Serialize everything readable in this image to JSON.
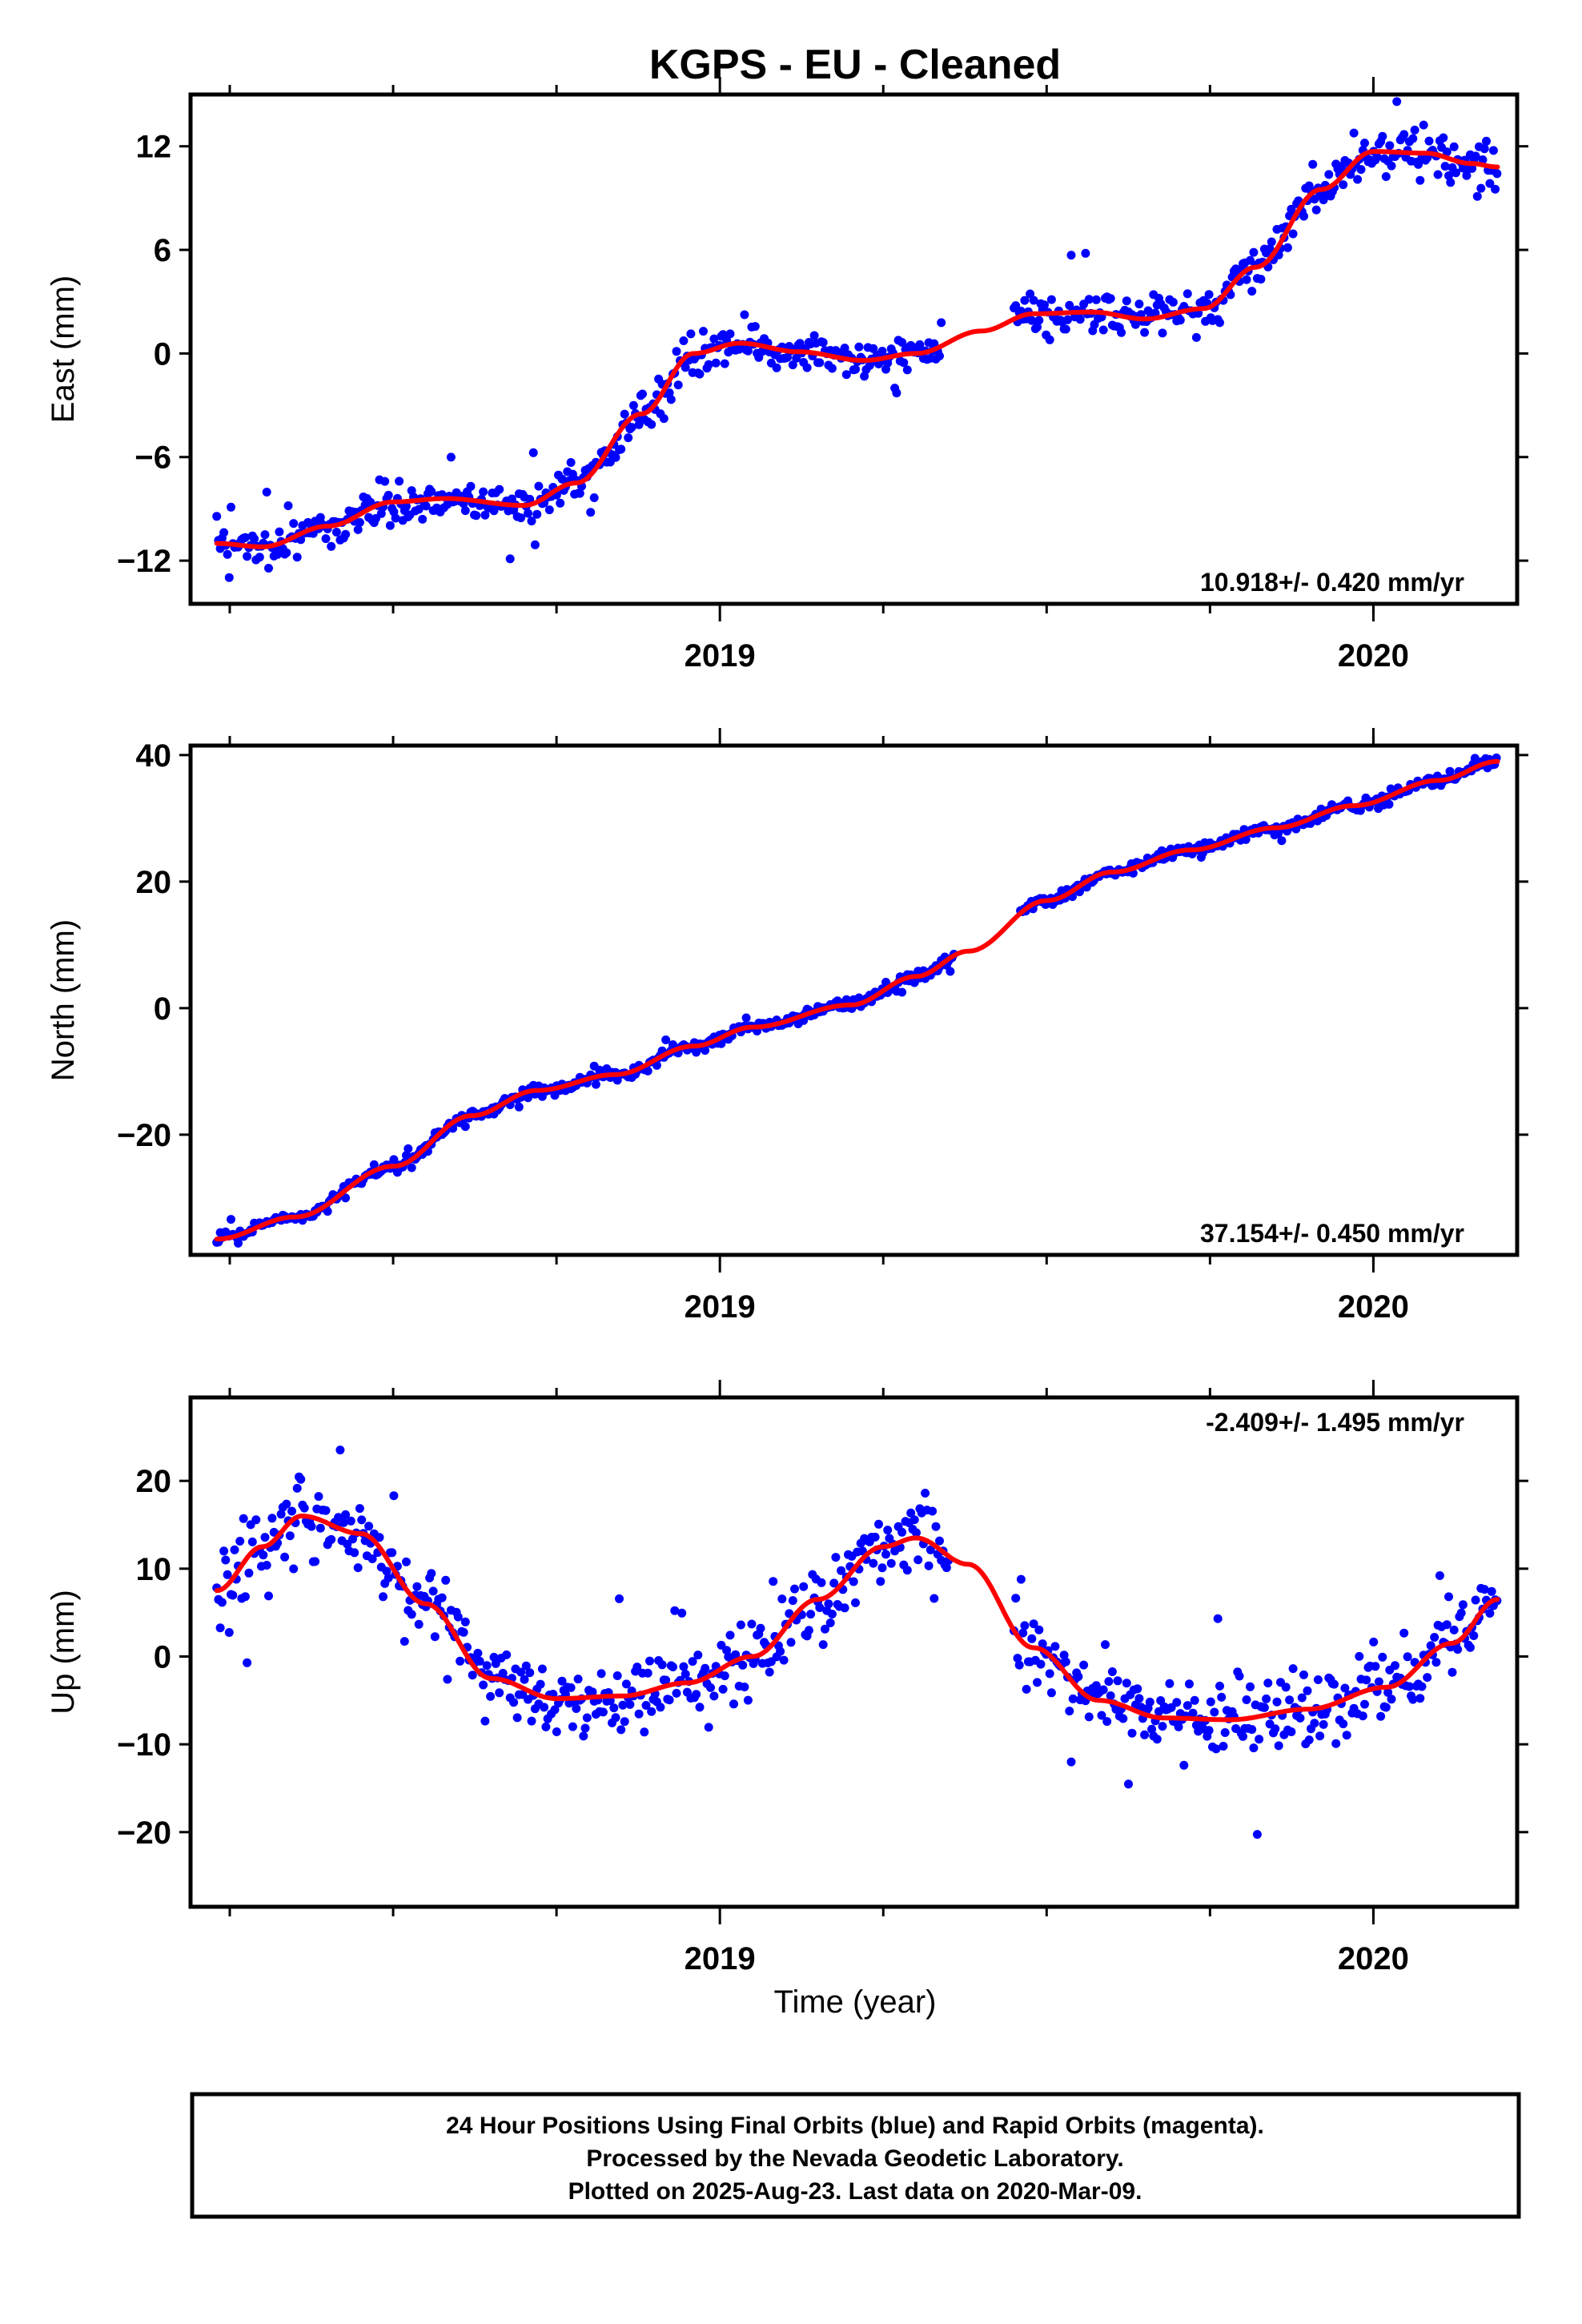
{
  "chart_data": {
    "title": "KGPS  - EU - Cleaned",
    "xlabel": "Time (year)",
    "x_ticks": [
      2019,
      2020
    ],
    "x_range": [
      2018.19,
      2020.22
    ],
    "marker_color": "#0000ff",
    "fit_color": "#ff0000",
    "panels": [
      {
        "name": "east",
        "type": "scatter",
        "ylabel": "East (mm)",
        "ylim": [
          -14.5,
          15
        ],
        "yticks": [
          -12,
          -6,
          0,
          6,
          12
        ],
        "rate_label": "10.918+/- 0.420 mm/yr",
        "rate_position": "bottom-right",
        "trend": [
          [
            2018.23,
            -11.0
          ],
          [
            2018.3,
            -11.2
          ],
          [
            2018.4,
            -10.0
          ],
          [
            2018.5,
            -8.6
          ],
          [
            2018.58,
            -8.4
          ],
          [
            2018.7,
            -8.8
          ],
          [
            2018.78,
            -7.5
          ],
          [
            2018.88,
            -3.5
          ],
          [
            2018.96,
            0.0
          ],
          [
            2019.03,
            0.6
          ],
          [
            2019.12,
            0.1
          ],
          [
            2019.22,
            -0.4
          ],
          [
            2019.3,
            0.0
          ],
          [
            2019.4,
            1.3
          ],
          [
            2019.48,
            2.3
          ],
          [
            2019.57,
            2.4
          ],
          [
            2019.65,
            2.0
          ],
          [
            2019.74,
            2.6
          ],
          [
            2019.82,
            5.0
          ],
          [
            2019.92,
            9.5
          ],
          [
            2020.0,
            11.7
          ],
          [
            2020.08,
            11.6
          ],
          [
            2020.15,
            11.0
          ],
          [
            2020.19,
            10.8
          ]
        ],
        "segments": [
          [
            2018.23,
            2019.34
          ],
          [
            2019.45,
            2020.19
          ]
        ],
        "scatter_sd": 1.0
      },
      {
        "name": "north",
        "type": "scatter",
        "ylabel": "North (mm)",
        "ylim": [
          -39,
          41.5
        ],
        "yticks": [
          -20,
          0,
          20,
          40
        ],
        "rate_label": "37.154+/- 0.450 mm/yr",
        "rate_position": "bottom-right",
        "trend": [
          [
            2018.23,
            -36.5
          ],
          [
            2018.35,
            -33.0
          ],
          [
            2018.5,
            -25.0
          ],
          [
            2018.62,
            -17.0
          ],
          [
            2018.72,
            -13.0
          ],
          [
            2018.84,
            -10.5
          ],
          [
            2018.96,
            -6.0
          ],
          [
            2019.05,
            -3.0
          ],
          [
            2019.2,
            0.5
          ],
          [
            2019.3,
            5.0
          ],
          [
            2019.38,
            9.0
          ],
          [
            2019.5,
            17.0
          ],
          [
            2019.6,
            21.5
          ],
          [
            2019.72,
            25.0
          ],
          [
            2019.85,
            28.5
          ],
          [
            2019.97,
            32.0
          ],
          [
            2020.1,
            36.0
          ],
          [
            2020.19,
            39.0
          ]
        ],
        "segments": [
          [
            2018.23,
            2019.36
          ],
          [
            2019.46,
            2020.19
          ]
        ],
        "scatter_sd": 0.8
      },
      {
        "name": "up",
        "type": "scatter",
        "ylabel": "Up (mm)",
        "ylim": [
          -28.5,
          29.5
        ],
        "yticks": [
          -20,
          -10,
          0,
          10,
          20
        ],
        "rate_label": "-2.409+/- 1.495 mm/yr",
        "rate_position": "top-right",
        "trend": [
          [
            2018.23,
            7.5
          ],
          [
            2018.3,
            12.5
          ],
          [
            2018.36,
            16.0
          ],
          [
            2018.45,
            14.0
          ],
          [
            2018.55,
            6.0
          ],
          [
            2018.65,
            -2.5
          ],
          [
            2018.75,
            -4.8
          ],
          [
            2018.85,
            -4.5
          ],
          [
            2018.95,
            -3.0
          ],
          [
            2019.05,
            0.0
          ],
          [
            2019.15,
            6.5
          ],
          [
            2019.25,
            12.5
          ],
          [
            2019.3,
            13.5
          ],
          [
            2019.38,
            10.5
          ],
          [
            2019.48,
            1.0
          ],
          [
            2019.58,
            -5.0
          ],
          [
            2019.68,
            -7.0
          ],
          [
            2019.78,
            -7.2
          ],
          [
            2019.9,
            -6.0
          ],
          [
            2020.02,
            -3.5
          ],
          [
            2020.12,
            1.5
          ],
          [
            2020.19,
            6.5
          ]
        ],
        "segments": [
          [
            2018.23,
            2019.35
          ],
          [
            2019.45,
            2020.19
          ]
        ],
        "scatter_sd": 3.6
      }
    ]
  },
  "footer": {
    "line1": "24 Hour Positions Using Final Orbits (blue) and Rapid Orbits (magenta).",
    "line2": "Processed by the Nevada Geodetic Laboratory.",
    "line3": "Plotted on 2025-Aug-23. Last data on 2020-Mar-09."
  }
}
